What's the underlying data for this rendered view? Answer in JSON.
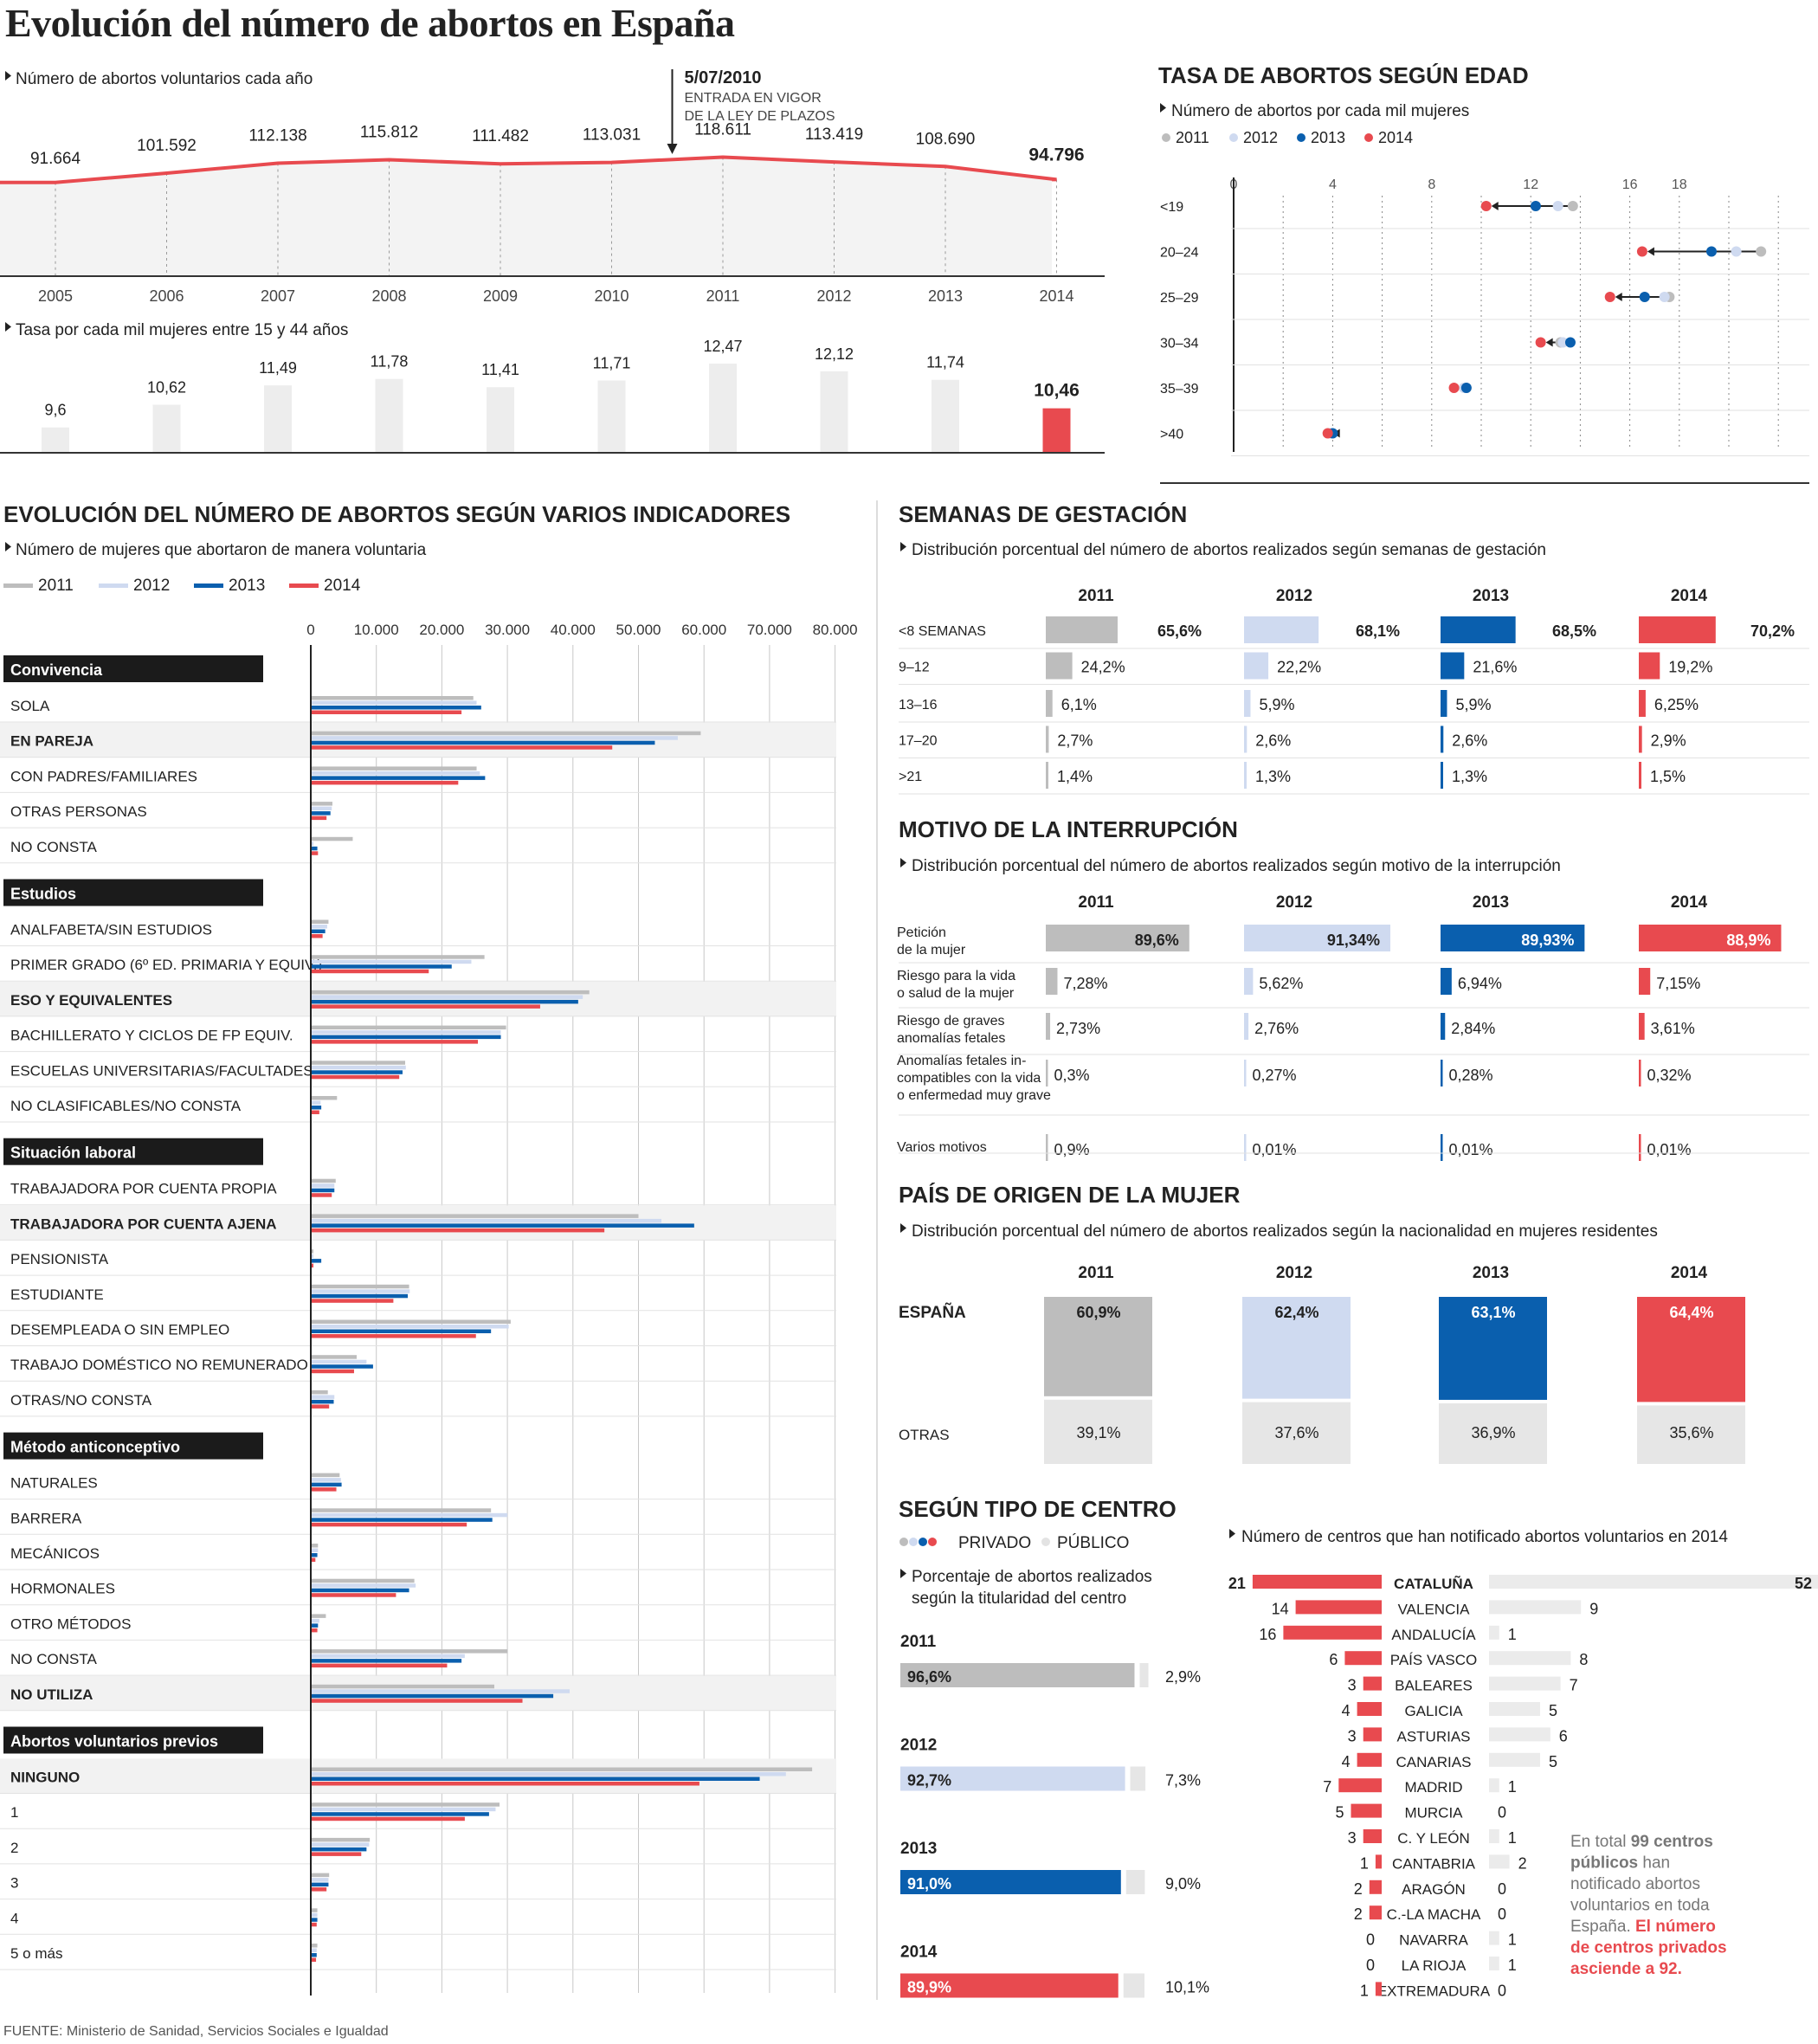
{
  "title": "Evolución del número de abortos en España",
  "source": "FUENTE: Ministerio de Sanidad, Servicios Sociales e Igualdad",
  "colors": {
    "y2011": "#bdbdbd",
    "y2012": "#cfdaf0",
    "y2013": "#0a5fae",
    "y2014": "#e84a4f",
    "public": "#e6e6e6"
  },
  "chart_data": [
    {
      "type": "line",
      "subtitle": "Número de abortos voluntarios cada año",
      "x": [
        "2005",
        "2006",
        "2007",
        "2008",
        "2009",
        "2010",
        "2011",
        "2012",
        "2013",
        "2014"
      ],
      "values": [
        91664,
        101592,
        112138,
        115812,
        111482,
        113031,
        118611,
        113419,
        108690,
        94796
      ],
      "value_labels": [
        "91.664",
        "101.592",
        "112.138",
        "115.812",
        "111.482",
        "113.031",
        "118.611",
        "113.419",
        "108.690",
        "94.796"
      ],
      "annotation": {
        "date": "5/07/2010",
        "line1": "ENTRADA EN VIGOR",
        "line2": "DE LA LEY DE PLAZOS"
      }
    },
    {
      "type": "bar",
      "subtitle": "Tasa por cada mil mujeres entre 15 y 44 años",
      "categories": [
        "2005",
        "2006",
        "2007",
        "2008",
        "2009",
        "2010",
        "2011",
        "2012",
        "2013",
        "2014"
      ],
      "values": [
        9.6,
        10.62,
        11.49,
        11.78,
        11.41,
        11.71,
        12.47,
        12.12,
        11.74,
        10.46
      ],
      "value_labels": [
        "9,6",
        "10,62",
        "11,49",
        "11,78",
        "11,41",
        "11,71",
        "12,47",
        "12,12",
        "11,74",
        "10,46"
      ]
    },
    {
      "type": "scatter",
      "title": "TASA DE ABORTOS SEGÚN EDAD",
      "subtitle": "Número de abortos por cada mil mujeres",
      "legend": [
        "2011",
        "2012",
        "2013",
        "2014"
      ],
      "ticks": [
        0,
        4,
        8,
        12,
        16,
        18
      ],
      "categories": [
        "<19",
        "20–24",
        "25–29",
        "30–34",
        "35–39",
        ">40"
      ],
      "series": [
        {
          "name": "2011",
          "values": [
            13.7,
            21.3,
            17.6,
            13.2,
            9.4,
            3.9
          ]
        },
        {
          "name": "2012",
          "values": [
            13.1,
            20.3,
            17.4,
            13.3,
            9.3,
            3.9
          ]
        },
        {
          "name": "2013",
          "values": [
            12.2,
            19.3,
            16.6,
            13.6,
            9.4,
            4.0
          ]
        },
        {
          "name": "2014",
          "values": [
            10.2,
            16.5,
            15.2,
            12.4,
            8.9,
            3.8
          ]
        }
      ]
    },
    {
      "type": "bar",
      "title": "EVOLUCIÓN DEL NÚMERO DE ABORTOS SEGÚN VARIOS INDICADORES",
      "subtitle": "Número de mujeres que abortaron de manera voluntaria",
      "legend": [
        "2011",
        "2012",
        "2013",
        "2014"
      ],
      "ticks": [
        "0",
        "10.000",
        "20.000",
        "30.000",
        "40.000",
        "50.000",
        "60.000",
        "70.000",
        "80.000"
      ],
      "groups": [
        {
          "name": "Convivencia",
          "rows": [
            {
              "label": "SOLA",
              "values": [
                24800,
                25300,
                26000,
                23000
              ]
            },
            {
              "label": "EN PAREJA",
              "bold": true,
              "values": [
                59500,
                56000,
                52500,
                46000
              ]
            },
            {
              "label": "CON PADRES/FAMILIARES",
              "values": [
                25300,
                25800,
                26600,
                22500
              ]
            },
            {
              "label": "OTRAS PERSONAS",
              "values": [
                3300,
                3200,
                3000,
                2400
              ]
            },
            {
              "label": "NO CONSTA",
              "values": [
                6400,
                400,
                1000,
                1100
              ]
            }
          ]
        },
        {
          "name": "Estudios",
          "rows": [
            {
              "label": "ANALFABETA/SIN ESTUDIOS",
              "values": [
                2700,
                2500,
                2200,
                1800
              ]
            },
            {
              "label": "PRIMER GRADO (6º ED. PRIMARIA Y EQUIV.)",
              "values": [
                26500,
                24500,
                21500,
                18000
              ]
            },
            {
              "label": "ESO Y EQUIVALENTES",
              "bold": true,
              "values": [
                42500,
                41500,
                40800,
                35000
              ]
            },
            {
              "label": "BACHILLERATO Y CICLOS DE FP EQUIV.",
              "values": [
                29800,
                29000,
                29000,
                25500
              ]
            },
            {
              "label": "ESCUELAS UNIVERSITARIAS/FACULTADES",
              "values": [
                14400,
                14500,
                14000,
                13500
              ]
            },
            {
              "label": "NO CLASIFICABLES/NO CONSTA",
              "values": [
                4000,
                1500,
                1600,
                1300
              ]
            }
          ]
        },
        {
          "name": "Situación laboral",
          "rows": [
            {
              "label": "TRABAJADORA POR CUENTA PROPIA",
              "values": [
                3800,
                3600,
                3600,
                3200
              ]
            },
            {
              "label": "TRABAJADORA POR CUENTA AJENA",
              "bold": true,
              "values": [
                50000,
                53500,
                58500,
                44800
              ]
            },
            {
              "label": "PENSIONISTA",
              "values": [
                400,
                400,
                1600,
                400
              ]
            },
            {
              "label": "ESTUDIANTE",
              "values": [
                15000,
                15100,
                14800,
                12600
              ]
            },
            {
              "label": "DESEMPLEADA O SIN EMPLEO",
              "values": [
                30500,
                30200,
                27500,
                25200
              ]
            },
            {
              "label": "TRABAJO DOMÉSTICO NO REMUNERADO",
              "values": [
                7000,
                8500,
                9500,
                6600
              ]
            },
            {
              "label": "OTRAS/NO CONSTA",
              "values": [
                2600,
                3600,
                3500,
                2800
              ]
            }
          ]
        },
        {
          "name": "Método anticonceptivo",
          "rows": [
            {
              "label": "NATURALES",
              "values": [
                4400,
                4600,
                4700,
                3900
              ]
            },
            {
              "label": "BARRERA",
              "values": [
                27500,
                30000,
                27700,
                23800
              ]
            },
            {
              "label": "MECÁNICOS",
              "values": [
                1100,
                1100,
                1000,
                700
              ]
            },
            {
              "label": "HORMONALES",
              "values": [
                15800,
                16000,
                15000,
                13000
              ]
            },
            {
              "label": "OTRO MÉTODOS",
              "values": [
                2300,
                1300,
                1100,
                1000
              ]
            },
            {
              "label": "NO CONSTA",
              "values": [
                30000,
                23500,
                23000,
                20800
              ]
            },
            {
              "label": "NO UTILIZA",
              "bold": true,
              "values": [
                28000,
                39500,
                37000,
                32300
              ]
            }
          ]
        },
        {
          "name": "Abortos voluntarios previos",
          "rows": [
            {
              "label": "NINGUNO",
              "bold": true,
              "values": [
                76500,
                72500,
                68500,
                59300
              ]
            },
            {
              "label": "1",
              "values": [
                28800,
                28200,
                27200,
                23500
              ]
            },
            {
              "label": "2",
              "values": [
                9000,
                8900,
                8500,
                7700
              ]
            },
            {
              "label": "3",
              "values": [
                2800,
                2700,
                2700,
                2400
              ]
            },
            {
              "label": "4",
              "values": [
                1000,
                1000,
                1000,
                900
              ]
            },
            {
              "label": "5 o más",
              "values": [
                1000,
                900,
                900,
                800
              ]
            }
          ]
        }
      ]
    },
    {
      "type": "bar",
      "title": "SEMANAS DE GESTACIÓN",
      "subtitle": "Distribución porcentual del número de abortos realizados según semanas de gestación",
      "years": [
        "2011",
        "2012",
        "2013",
        "2014"
      ],
      "categories": [
        "<8 SEMANAS",
        "9–12",
        "13–16",
        "17–20",
        ">21"
      ],
      "series": [
        {
          "name": "2011",
          "values": [
            65.6,
            24.2,
            6.1,
            2.7,
            1.4
          ],
          "labels": [
            "65,6%",
            "24,2%",
            "6,1%",
            "2,7%",
            "1,4%"
          ]
        },
        {
          "name": "2012",
          "values": [
            68.1,
            22.2,
            5.9,
            2.6,
            1.3
          ],
          "labels": [
            "68,1%",
            "22,2%",
            "5,9%",
            "2,6%",
            "1,3%"
          ]
        },
        {
          "name": "2013",
          "values": [
            68.5,
            21.6,
            5.9,
            2.6,
            1.3
          ],
          "labels": [
            "68,5%",
            "21,6%",
            "5,9%",
            "2,6%",
            "1,3%"
          ]
        },
        {
          "name": "2014",
          "values": [
            70.2,
            19.2,
            6.25,
            2.9,
            1.5
          ],
          "labels": [
            "70,2%",
            "19,2%",
            "6,25%",
            "2,9%",
            "1,5%"
          ]
        }
      ]
    },
    {
      "type": "bar",
      "title": "MOTIVO DE LA INTERRUPCIÓN",
      "subtitle": "Distribución porcentual del número de abortos realizados según motivo de la interrupción",
      "years": [
        "2011",
        "2012",
        "2013",
        "2014"
      ],
      "categories": [
        [
          "Petición",
          "de la mujer"
        ],
        [
          "Riesgo para la vida",
          "o salud de la mujer"
        ],
        [
          "Riesgo de graves",
          "anomalías fetales"
        ],
        [
          "Anomalías fetales in-",
          "compatibles con la vida",
          "o enfermedad muy grave"
        ],
        [
          "Varios motivos"
        ]
      ],
      "series": [
        {
          "name": "2011",
          "values": [
            89.6,
            7.28,
            2.73,
            0.3,
            0.9
          ],
          "labels": [
            "89,6%",
            "7,28%",
            "2,73%",
            "0,3%",
            "0,9%"
          ]
        },
        {
          "name": "2012",
          "values": [
            91.34,
            5.62,
            2.76,
            0.27,
            0.01
          ],
          "labels": [
            "91,34%",
            "5,62%",
            "2,76%",
            "0,27%",
            "0,01%"
          ]
        },
        {
          "name": "2013",
          "values": [
            89.93,
            6.94,
            2.84,
            0.28,
            0.01
          ],
          "labels": [
            "89,93%",
            "6,94%",
            "2,84%",
            "0,28%",
            "0,01%"
          ]
        },
        {
          "name": "2014",
          "values": [
            88.9,
            7.15,
            3.61,
            0.32,
            0.01
          ],
          "labels": [
            "88,9%",
            "7,15%",
            "3,61%",
            "0,32%",
            "0,01%"
          ]
        }
      ]
    },
    {
      "type": "bar",
      "title": "PAÍS DE ORIGEN DE LA MUJER",
      "subtitle": "Distribución porcentual del número de abortos realizados según la nacionalidad en mujeres residentes",
      "years": [
        "2011",
        "2012",
        "2013",
        "2014"
      ],
      "categories": [
        "ESPAÑA",
        "OTRAS"
      ],
      "series": [
        {
          "name": "2011",
          "values": [
            60.9,
            39.1
          ],
          "labels": [
            "60,9%",
            "39,1%"
          ]
        },
        {
          "name": "2012",
          "values": [
            62.4,
            37.6
          ],
          "labels": [
            "62,4%",
            "37,6%"
          ]
        },
        {
          "name": "2013",
          "values": [
            63.1,
            36.9
          ],
          "labels": [
            "63,1%",
            "36,9%"
          ]
        },
        {
          "name": "2014",
          "values": [
            64.4,
            35.6
          ],
          "labels": [
            "64,4%",
            "35,6%"
          ]
        }
      ]
    },
    {
      "type": "bar",
      "title": "SEGÚN TIPO DE CENTRO",
      "legend": [
        "PRIVADO",
        "PÚBLICO"
      ],
      "subtitle_lines": [
        "Porcentaje de abortos realizados",
        "según la titularidad del centro"
      ],
      "years": [
        "2011",
        "2012",
        "2013",
        "2014"
      ],
      "privado": [
        96.6,
        92.7,
        91.0,
        89.9
      ],
      "publico": [
        2.9,
        7.3,
        9.0,
        10.1
      ],
      "privado_labels": [
        "96,6%",
        "92,7%",
        "91,0%",
        "89,9%"
      ],
      "publico_labels": [
        "2,9%",
        "7,3%",
        "9,0%",
        "10,1%"
      ]
    },
    {
      "type": "bar",
      "subtitle": "Número de centros que han notificado abortos voluntarios en 2014",
      "categories": [
        "CATALUÑA",
        "VALENCIA",
        "ANDALUCÍA",
        "PAÍS VASCO",
        "BALEARES",
        "GALICIA",
        "ASTURIAS",
        "CANARIAS",
        "MADRID",
        "MURCIA",
        "C. Y LEÓN",
        "CANTABRIA",
        "ARAGÓN",
        "C.-LA MACHA",
        "NAVARRA",
        "LA RIOJA",
        "EXTREMADURA"
      ],
      "privado": [
        21,
        14,
        16,
        6,
        3,
        4,
        3,
        4,
        7,
        5,
        3,
        1,
        2,
        2,
        0,
        0,
        1
      ],
      "publico": [
        52,
        9,
        1,
        8,
        7,
        5,
        6,
        5,
        1,
        0,
        1,
        2,
        0,
        0,
        1,
        1,
        0
      ],
      "note": {
        "t1": "En total ",
        "t2": "99 centros públicos",
        "t3": " han notificado abortos voluntarios en toda España. ",
        "t4": "El número de centros privados asciende a 92."
      }
    }
  ]
}
